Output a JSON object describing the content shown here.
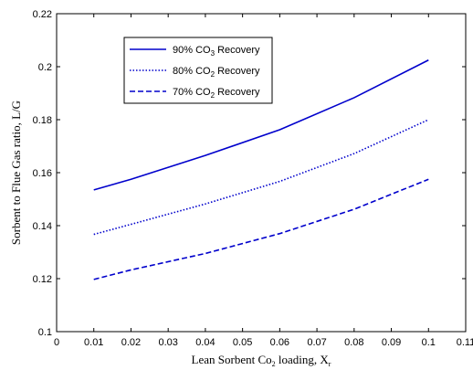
{
  "chart_data": {
    "type": "line",
    "xlabel": {
      "text": "Lean Sorbent Co",
      "sub": "2",
      "tail": " loading, X",
      "sub2": "r"
    },
    "ylabel": "Sorbent to Flue Gas ratio, L/G",
    "xlim": [
      0,
      0.11
    ],
    "ylim": [
      0.1,
      0.22
    ],
    "xticks": [
      "0",
      "0.01",
      "0.02",
      "0.03",
      "0.04",
      "0.05",
      "0.06",
      "0.07",
      "0.08",
      "0.09",
      "0.1",
      "0.11"
    ],
    "yticks": [
      "0.1",
      "0.12",
      "0.14",
      "0.16",
      "0.18",
      "0.2",
      "0.22"
    ],
    "grid": false,
    "legend_position": "upper-left",
    "series_color": "#0000cc",
    "x": [
      0.01,
      0.02,
      0.04,
      0.06,
      0.08,
      0.1
    ],
    "series": [
      {
        "name": "90% CO",
        "sub": "3",
        "tail": " Recovery",
        "style": "solid",
        "values": [
          0.1535,
          0.1575,
          0.1665,
          0.1762,
          0.1883,
          0.2025
        ]
      },
      {
        "name": "80% CO",
        "sub": "2",
        "tail": " Recovery",
        "style": "dotted",
        "values": [
          0.1367,
          0.1405,
          0.1482,
          0.1567,
          0.1672,
          0.18
        ]
      },
      {
        "name": "70% CO",
        "sub": "2",
        "tail": " Recovery",
        "style": "dashed",
        "values": [
          0.1197,
          0.1233,
          0.1295,
          0.137,
          0.1462,
          0.1575
        ]
      }
    ]
  }
}
